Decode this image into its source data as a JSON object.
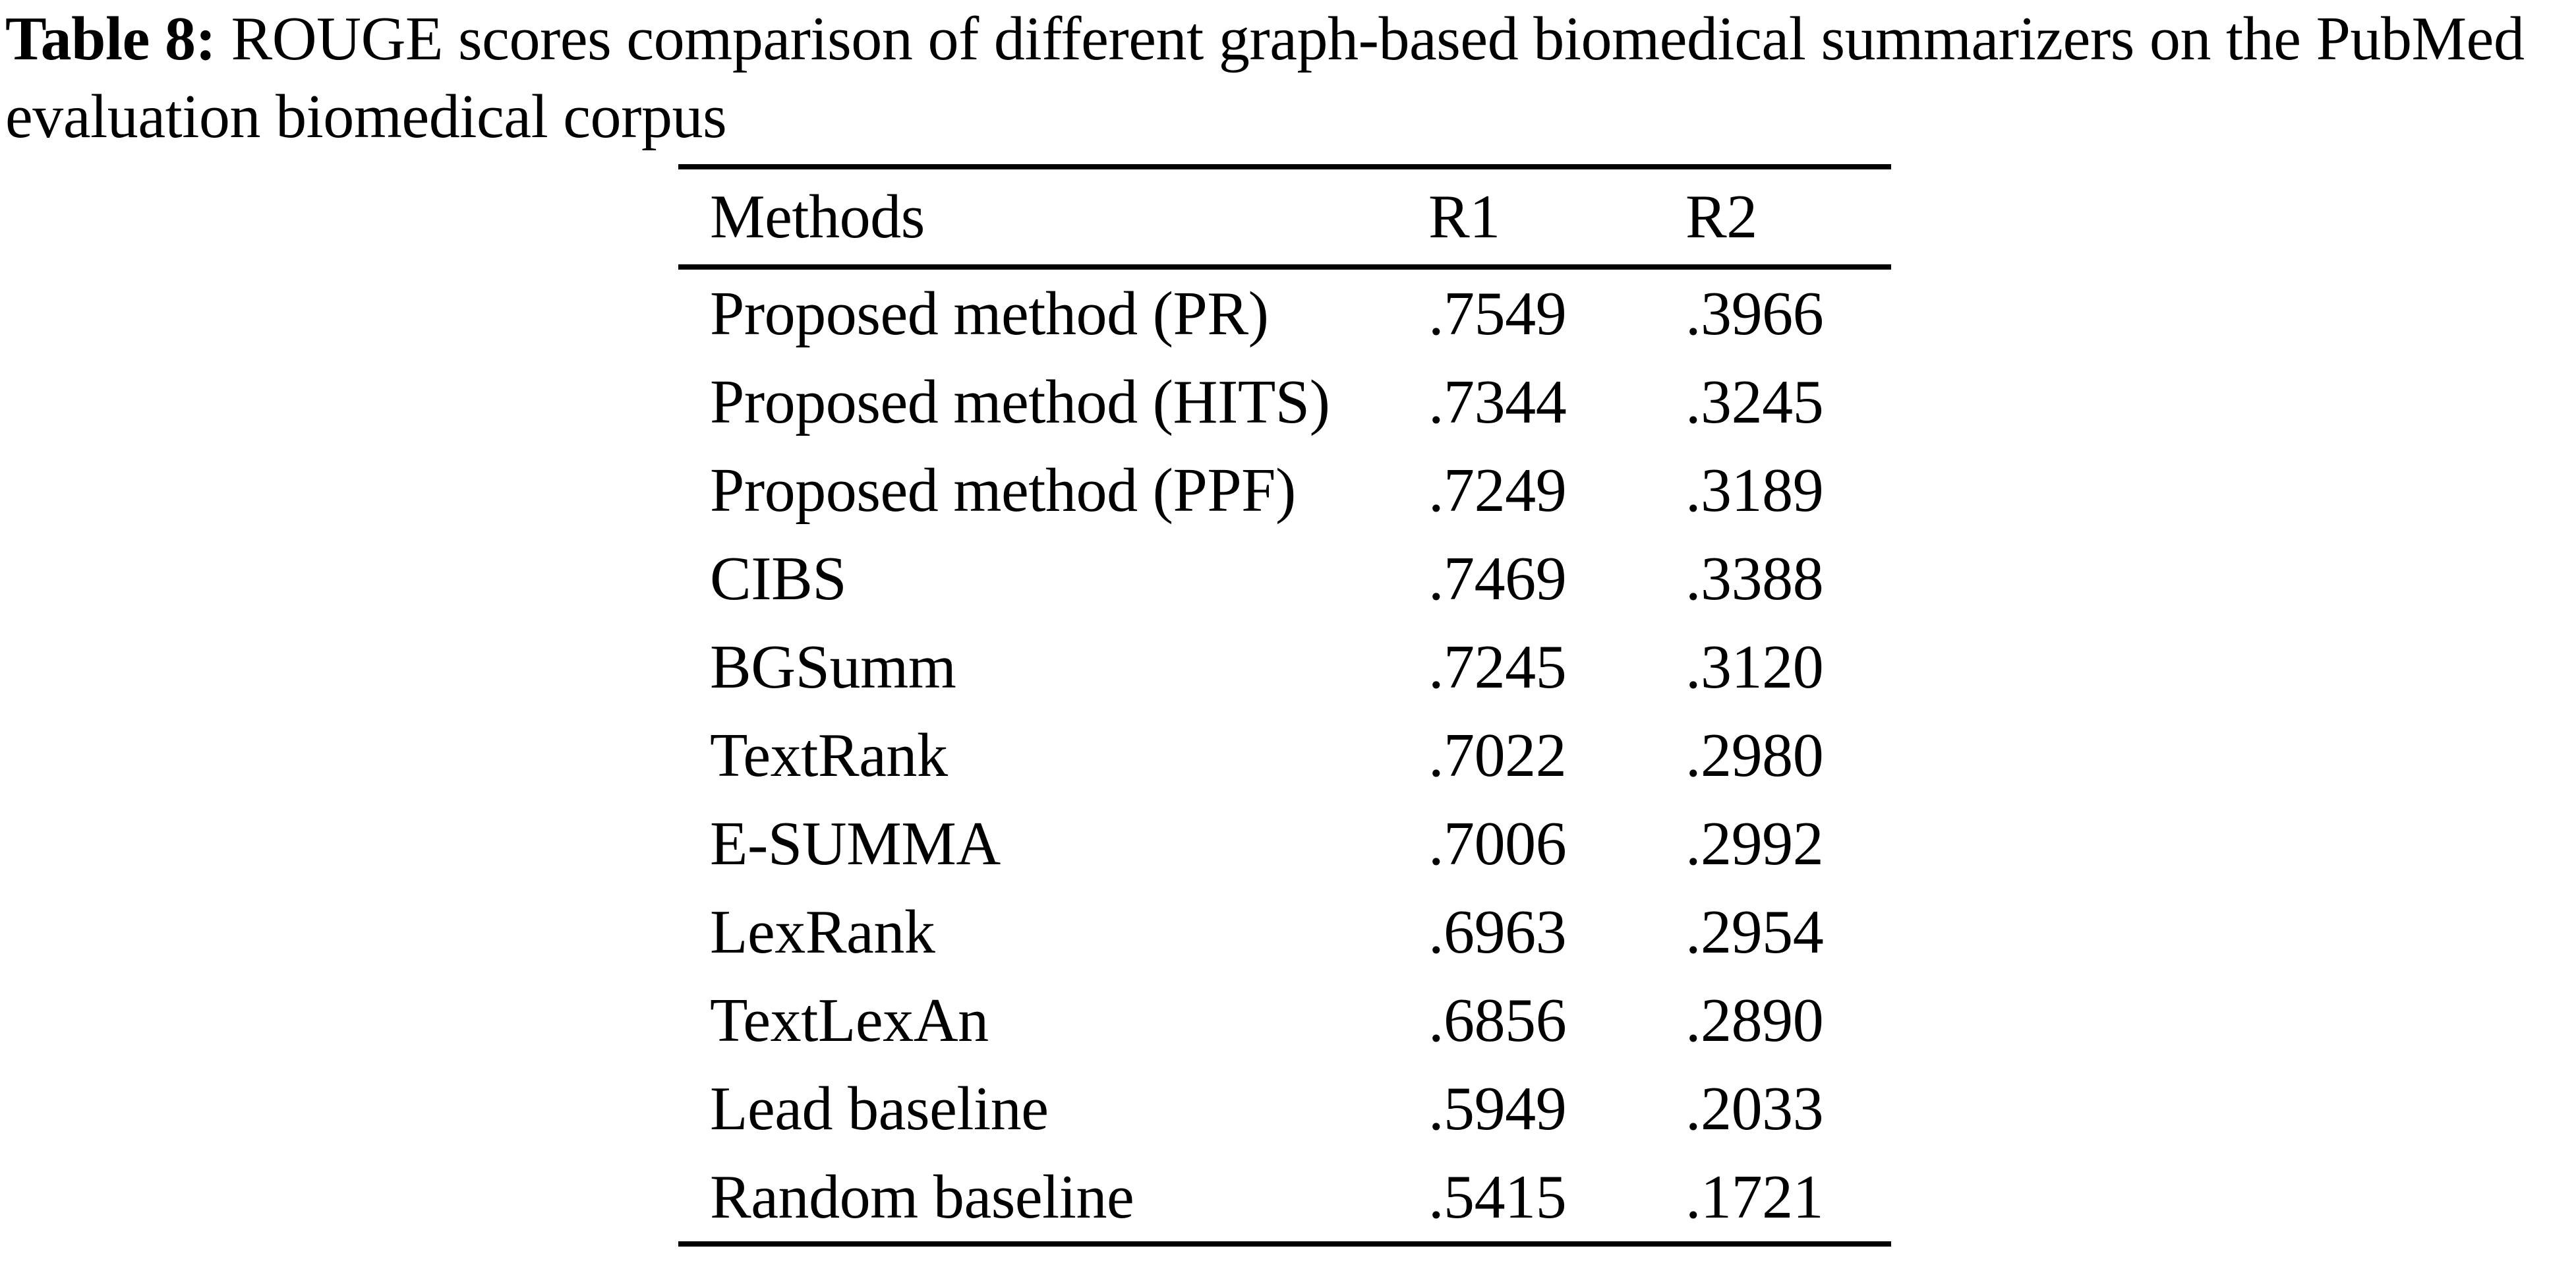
{
  "caption": {
    "label": "Table 8:",
    "line1": "ROUGE scores comparison of different graph-based biomedical summarizers on the PubMed",
    "line2": "evaluation biomedical corpus"
  },
  "chart_data": {
    "type": "table",
    "title": "ROUGE scores comparison of different graph-based biomedical summarizers on the PubMed evaluation biomedical corpus",
    "columns": [
      "Methods",
      "R1",
      "R2"
    ],
    "rows": [
      {
        "method": "Proposed method (PR)",
        "r1": ".7549",
        "r2": ".3966"
      },
      {
        "method": "Proposed method (HITS)",
        "r1": ".7344",
        "r2": ".3245"
      },
      {
        "method": "Proposed method (PPF)",
        "r1": ".7249",
        "r2": ".3189"
      },
      {
        "method": "CIBS",
        "r1": ".7469",
        "r2": ".3388"
      },
      {
        "method": "BGSumm",
        "r1": ".7245",
        "r2": ".3120"
      },
      {
        "method": "TextRank",
        "r1": ".7022",
        "r2": ".2980"
      },
      {
        "method": "E-SUMMA",
        "r1": ".7006",
        "r2": ".2992"
      },
      {
        "method": "LexRank",
        "r1": ".6963",
        "r2": ".2954"
      },
      {
        "method": "TextLexAn",
        "r1": ".6856",
        "r2": ".2890"
      },
      {
        "method": "Lead baseline",
        "r1": ".5949",
        "r2": ".2033"
      },
      {
        "method": "Random baseline",
        "r1": ".5415",
        "r2": ".1721"
      }
    ],
    "colors": {
      "text": "#000000",
      "background": "#ffffff",
      "rule": "#000000"
    }
  }
}
